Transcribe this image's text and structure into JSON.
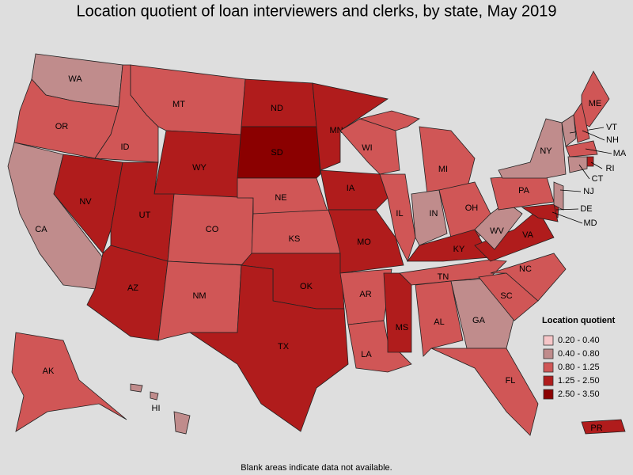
{
  "title": "Location quotient of loan interviewers and clerks, by state, May 2019",
  "legend": {
    "title": "Location quotient",
    "items": [
      {
        "label": "0.20 - 0.40",
        "color": "#f6c6c8"
      },
      {
        "label": "0.40 - 0.80",
        "color": "#c08c8c"
      },
      {
        "label": "0.80 - 1.25",
        "color": "#d05656"
      },
      {
        "label": "1.25 - 2.50",
        "color": "#b01c1c"
      },
      {
        "label": "2.50 - 3.50",
        "color": "#8b0000"
      }
    ]
  },
  "states": [
    {
      "label": "WA",
      "class": "0.40 - 0.80"
    },
    {
      "label": "OR",
      "class": "0.80 - 1.25"
    },
    {
      "label": "CA",
      "class": "0.40 - 0.80"
    },
    {
      "label": "NV",
      "class": "1.25 - 2.50"
    },
    {
      "label": "ID",
      "class": "0.80 - 1.25"
    },
    {
      "label": "MT",
      "class": "0.80 - 1.25"
    },
    {
      "label": "WY",
      "class": "1.25 - 2.50"
    },
    {
      "label": "UT",
      "class": "1.25 - 2.50"
    },
    {
      "label": "AZ",
      "class": "1.25 - 2.50"
    },
    {
      "label": "CO",
      "class": "0.80 - 1.25"
    },
    {
      "label": "NM",
      "class": "0.80 - 1.25"
    },
    {
      "label": "ND",
      "class": "1.25 - 2.50"
    },
    {
      "label": "SD",
      "class": "2.50 - 3.50"
    },
    {
      "label": "NE",
      "class": "0.80 - 1.25"
    },
    {
      "label": "KS",
      "class": "0.80 - 1.25"
    },
    {
      "label": "OK",
      "class": "1.25 - 2.50"
    },
    {
      "label": "TX",
      "class": "1.25 - 2.50"
    },
    {
      "label": "MN",
      "class": "1.25 - 2.50"
    },
    {
      "label": "IA",
      "class": "1.25 - 2.50"
    },
    {
      "label": "MO",
      "class": "1.25 - 2.50"
    },
    {
      "label": "AR",
      "class": "0.80 - 1.25"
    },
    {
      "label": "LA",
      "class": "0.80 - 1.25"
    },
    {
      "label": "WI",
      "class": "0.80 - 1.25"
    },
    {
      "label": "IL",
      "class": "0.80 - 1.25"
    },
    {
      "label": "MS",
      "class": "1.25 - 2.50"
    },
    {
      "label": "MI",
      "class": "0.80 - 1.25"
    },
    {
      "label": "IN",
      "class": "0.40 - 0.80"
    },
    {
      "label": "OH",
      "class": "0.80 - 1.25"
    },
    {
      "label": "KY",
      "class": "1.25 - 2.50"
    },
    {
      "label": "TN",
      "class": "0.80 - 1.25"
    },
    {
      "label": "AL",
      "class": "0.80 - 1.25"
    },
    {
      "label": "GA",
      "class": "0.40 - 0.80"
    },
    {
      "label": "FL",
      "class": "0.80 - 1.25"
    },
    {
      "label": "SC",
      "class": "0.80 - 1.25"
    },
    {
      "label": "NC",
      "class": "0.80 - 1.25"
    },
    {
      "label": "VA",
      "class": "1.25 - 2.50"
    },
    {
      "label": "WV",
      "class": "0.40 - 0.80"
    },
    {
      "label": "PA",
      "class": "0.80 - 1.25"
    },
    {
      "label": "NY",
      "class": "0.40 - 0.80"
    },
    {
      "label": "ME",
      "class": "0.80 - 1.25"
    },
    {
      "label": "VT",
      "class": "0.40 - 0.80"
    },
    {
      "label": "NH",
      "class": "0.80 - 1.25"
    },
    {
      "label": "MA",
      "class": "0.80 - 1.25"
    },
    {
      "label": "RI",
      "class": "1.25 - 2.50"
    },
    {
      "label": "CT",
      "class": "0.40 - 0.80"
    },
    {
      "label": "NJ",
      "class": "0.40 - 0.80"
    },
    {
      "label": "DE",
      "class": "1.25 - 2.50"
    },
    {
      "label": "MD",
      "class": "1.25 - 2.50"
    },
    {
      "label": "AK",
      "class": "0.80 - 1.25"
    },
    {
      "label": "HI",
      "class": "0.40 - 0.80"
    },
    {
      "label": "PR",
      "class": "1.25 - 2.50"
    }
  ],
  "footnote": "Blank areas indicate data not available."
}
